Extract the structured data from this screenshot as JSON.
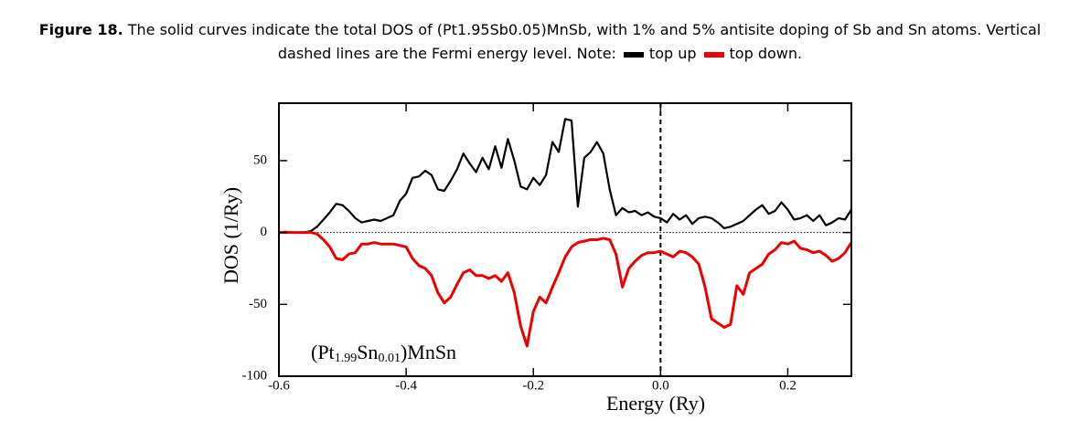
{
  "chart_data": {
    "type": "line",
    "caption_label": "Figure 18.",
    "caption": "The solid curves indicate the total DOS of (Pt1.95Sb0.05)MnSb,  with  1%  and 5% antisite doping of Sb and Sn atoms. Vertical dashed lines are the Fermi energy level. Note:",
    "xlabel": "Energy (Ry)",
    "ylabel": "DOS (1/Ry)",
    "annotation": [
      "(Pt",
      "1.99",
      "Sn",
      "0.01",
      ")MnSn"
    ],
    "xlim": [
      -0.6,
      0.3
    ],
    "ylim": [
      -100,
      90
    ],
    "xticks": [
      -0.6,
      -0.4,
      -0.2,
      {
        "value": 0,
        "label": "0.0"
      },
      0.2
    ],
    "yticks": [
      -100,
      -50,
      0,
      50
    ],
    "vlines": [
      0
    ],
    "hlines": [
      0
    ],
    "x": [
      -0.6,
      -0.59,
      -0.58,
      -0.57,
      -0.56,
      -0.55,
      -0.54,
      -0.53,
      -0.52,
      -0.51,
      -0.5,
      -0.49,
      -0.48,
      -0.47,
      -0.46,
      -0.45,
      -0.44,
      -0.43,
      -0.42,
      -0.41,
      -0.4,
      -0.39,
      -0.38,
      -0.37,
      -0.36,
      -0.35,
      -0.34,
      -0.33,
      -0.32,
      -0.31,
      -0.3,
      -0.29,
      -0.28,
      -0.27,
      -0.26,
      -0.25,
      -0.24,
      -0.23,
      -0.22,
      -0.21,
      -0.2,
      -0.19,
      -0.18,
      -0.17,
      -0.16,
      -0.15,
      -0.14,
      -0.13,
      -0.12,
      -0.11,
      -0.1,
      -0.09,
      -0.08,
      -0.07,
      -0.06,
      -0.05,
      -0.04,
      -0.03,
      -0.02,
      -0.01,
      0,
      0.01,
      0.02,
      0.03,
      0.04,
      0.05,
      0.06,
      0.07,
      0.08,
      0.09,
      0.1,
      0.11,
      0.12,
      0.13,
      0.14,
      0.15,
      0.16,
      0.17,
      0.18,
      0.19,
      0.2,
      0.21,
      0.22,
      0.23,
      0.24,
      0.25,
      0.26,
      0.27,
      0.28,
      0.29,
      0.3
    ],
    "series": [
      {
        "name": "top up",
        "color": "#000000",
        "values": [
          0,
          0.5,
          0,
          0,
          0,
          1,
          4,
          9,
          14,
          20,
          19,
          15,
          10,
          7,
          8,
          9,
          8,
          10,
          12,
          22,
          27,
          38,
          39,
          43,
          40,
          30,
          29,
          36,
          44,
          55,
          48,
          42,
          52,
          44,
          60,
          45,
          65,
          50,
          32,
          30,
          38,
          33,
          40,
          63,
          56,
          79,
          78,
          18,
          52,
          56,
          63,
          55,
          30,
          12,
          17,
          14,
          15,
          12,
          14,
          11,
          10,
          7,
          13,
          9,
          12,
          6,
          10,
          11,
          10,
          7,
          3,
          4,
          6,
          8,
          12,
          16,
          19,
          13,
          15,
          21,
          16,
          9,
          10,
          12,
          8,
          12,
          5,
          7,
          10,
          9,
          16
        ]
      },
      {
        "name": "top down.",
        "color": "#ee0000",
        "values": [
          0,
          0,
          0,
          0,
          0,
          0,
          -1,
          -5,
          -10,
          -18,
          -19,
          -15,
          -14,
          -8,
          -8,
          -7,
          -8,
          -8,
          -8,
          -9,
          -10,
          -18,
          -23,
          -25,
          -30,
          -42,
          -49,
          -45,
          -36,
          -28,
          -26,
          -30,
          -30,
          -32,
          -30,
          -34,
          -28,
          -42,
          -65,
          -79,
          -55,
          -45,
          -49,
          -38,
          -28,
          -17,
          -10,
          -7,
          -6,
          -5,
          -5,
          -4,
          -5,
          -15,
          -38,
          -25,
          -20,
          -16,
          -14,
          -14,
          -13,
          -15,
          -17,
          -13,
          -14,
          -17,
          -22,
          -38,
          -60,
          -63,
          -66,
          -64,
          -37,
          -43,
          -28,
          -25,
          -22,
          -15,
          -12,
          -7,
          -8,
          -6,
          -11,
          -12,
          -14,
          -13,
          -16,
          -20,
          -18,
          -14,
          -7
        ]
      }
    ]
  }
}
